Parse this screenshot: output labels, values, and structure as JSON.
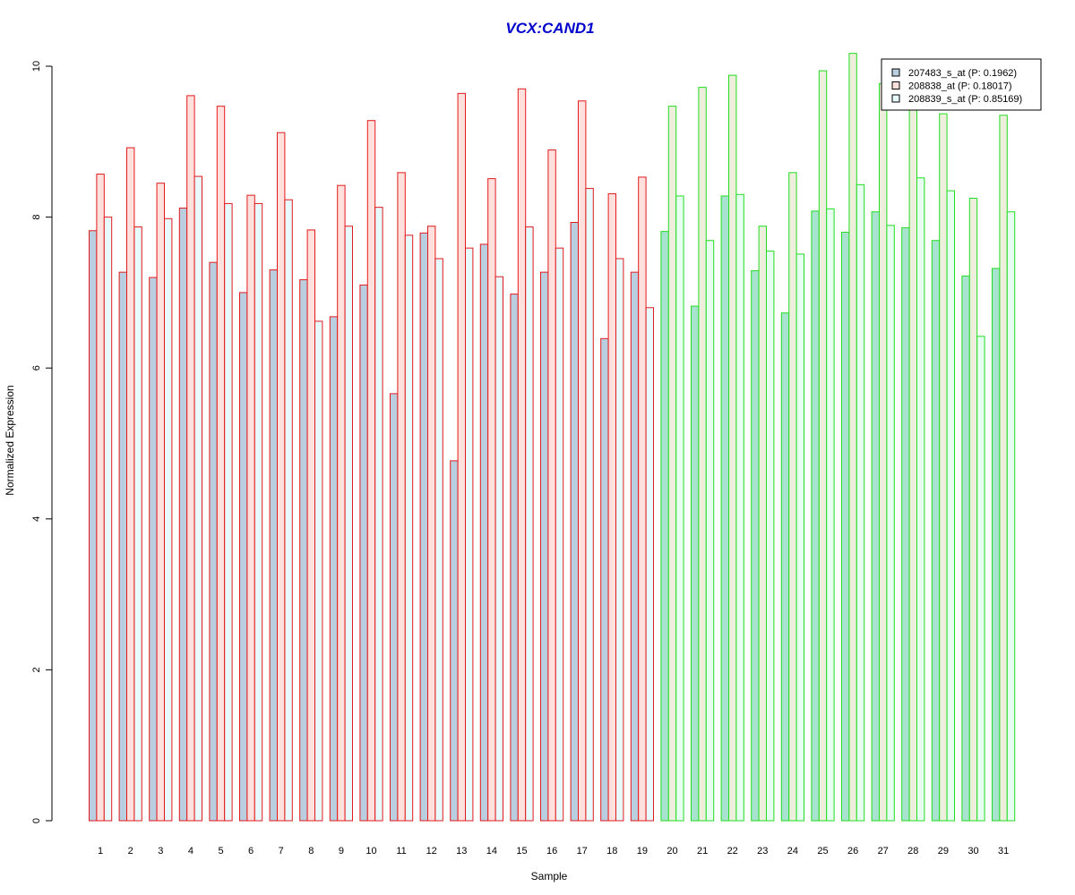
{
  "chart_data": {
    "type": "bar",
    "title": "VCX:CAND1",
    "xlabel": "Sample",
    "ylabel": "Normalized Expression",
    "ylim": [
      0,
      10
    ],
    "yticks": [
      0,
      2,
      4,
      6,
      8,
      10
    ],
    "categories": [
      "1",
      "2",
      "3",
      "4",
      "5",
      "6",
      "7",
      "8",
      "9",
      "10",
      "11",
      "12",
      "13",
      "14",
      "15",
      "16",
      "17",
      "18",
      "19",
      "20",
      "21",
      "22",
      "23",
      "24",
      "25",
      "26",
      "27",
      "28",
      "29",
      "30",
      "31"
    ],
    "group_split_after": 19,
    "group_colors": {
      "group1_border": "#e31a1c",
      "group2_border": "#22dd22"
    },
    "series": [
      {
        "name": "207483_s_at (P: 0.1962)",
        "fill_group1": "#b9cfe0",
        "fill_group2": "#a8e3cf",
        "legend_fill": "#b9cfe0",
        "values": [
          7.82,
          7.27,
          7.2,
          8.12,
          7.4,
          7.0,
          7.3,
          7.17,
          6.68,
          7.1,
          5.66,
          7.79,
          4.77,
          7.64,
          6.98,
          7.27,
          7.93,
          6.39,
          7.27,
          7.81,
          6.82,
          8.28,
          7.29,
          6.73,
          8.08,
          7.8,
          8.07,
          7.86,
          7.69,
          7.22,
          7.32
        ]
      },
      {
        "name": "208838_at (P: 0.18017)",
        "fill_group1": "#ffe0dc",
        "fill_group2": "#eeeedd",
        "legend_fill": "#ffe0dc",
        "values": [
          8.57,
          8.92,
          8.45,
          9.61,
          9.47,
          8.29,
          9.12,
          7.83,
          8.42,
          9.28,
          8.59,
          7.88,
          9.64,
          8.51,
          9.7,
          8.89,
          9.54,
          8.31,
          8.53,
          9.47,
          9.72,
          9.88,
          7.88,
          8.59,
          9.94,
          10.17,
          9.77,
          9.6,
          9.37,
          8.25,
          9.35
        ]
      },
      {
        "name": "208839_s_at (P: 0.85169)",
        "fill_group1": "#e6faff",
        "fill_group2": "#e6fff0",
        "legend_fill": "#e6faff",
        "values": [
          8.0,
          7.87,
          7.98,
          8.54,
          8.18,
          8.18,
          8.23,
          6.62,
          7.88,
          8.13,
          7.76,
          7.45,
          7.59,
          7.21,
          7.87,
          7.59,
          8.38,
          7.45,
          6.8,
          8.28,
          7.69,
          8.3,
          7.55,
          7.51,
          8.11,
          8.43,
          7.89,
          8.52,
          8.35,
          6.42,
          8.07
        ]
      }
    ],
    "legend_position": "top-right"
  }
}
